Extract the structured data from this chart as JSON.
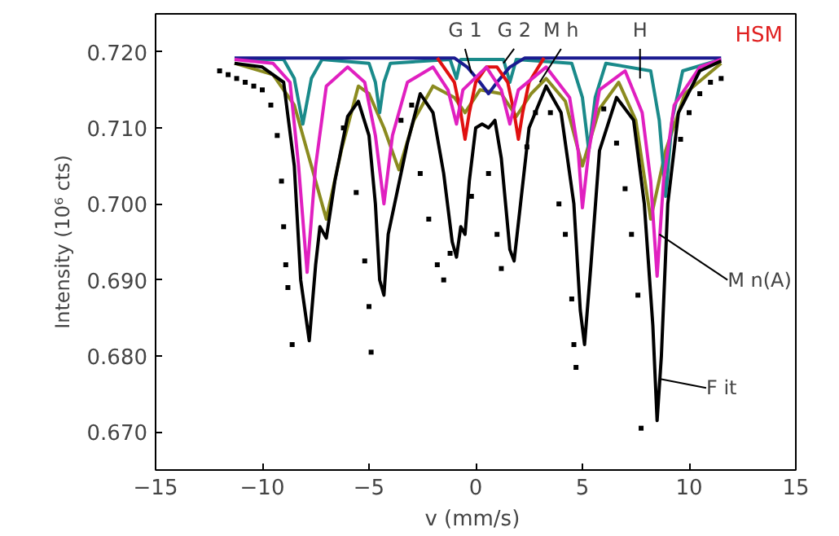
{
  "chart_data": {
    "type": "line",
    "xlabel": "v  (mm/s)",
    "ylabel": "Intensity (10⁶ cts)",
    "xlim": [
      -15,
      15
    ],
    "xticks": [
      -15,
      -10,
      -5,
      0,
      5,
      10,
      15
    ],
    "ylim": [
      0.665,
      0.725
    ],
    "yticks": [
      {
        "value": 0.67,
        "label": "0.670"
      },
      {
        "value": 0.68,
        "label": "0.680"
      },
      {
        "value": 0.69,
        "label": "0.690"
      },
      {
        "value": 0.7,
        "label": "0.700"
      },
      {
        "value": 0.71,
        "label": "0.710"
      },
      {
        "value": 0.72,
        "label": "0.720"
      }
    ],
    "series": [
      {
        "type": "scatter",
        "color": "#000000",
        "x": [
          -12,
          -11.6,
          -11.2,
          -10.8,
          -10.4,
          -10,
          -9.6,
          -9.3,
          -9.1,
          -9,
          -8.9,
          -8.8,
          -8.6,
          -6.2,
          -5.6,
          -5.2,
          -5,
          -4.9,
          -3.5,
          -3,
          -2.6,
          -2.2,
          -1.8,
          -1.5,
          -1.2,
          -0.2,
          0.6,
          1,
          1.2,
          2.4,
          2.8,
          3.5,
          3.9,
          4.2,
          4.5,
          4.6,
          4.7,
          6,
          6.6,
          7,
          7.3,
          7.6,
          7.75,
          9.6,
          10,
          10.5,
          11,
          11.5
        ],
        "values": [
          0.7175,
          0.717,
          0.7165,
          0.716,
          0.7155,
          0.715,
          0.713,
          0.709,
          0.703,
          0.697,
          0.692,
          0.689,
          0.6815,
          0.71,
          0.7015,
          0.6925,
          0.6865,
          0.6805,
          0.711,
          0.713,
          0.704,
          0.698,
          0.692,
          0.69,
          0.6935,
          0.701,
          0.704,
          0.696,
          0.6915,
          0.7075,
          0.712,
          0.712,
          0.7,
          0.696,
          0.6875,
          0.6815,
          0.6785,
          0.7125,
          0.708,
          0.702,
          0.696,
          0.688,
          0.6705,
          0.7085,
          0.712,
          0.7145,
          0.716,
          0.7165
        ]
      },
      {
        "color": "#8b8b20",
        "x": [
          -11.3,
          -9.5,
          -8.5,
          -7.8,
          -7.0,
          -6.3,
          -5.5,
          -5,
          -4.3,
          -3.6,
          -2.9,
          -2.0,
          -1.0,
          -0.5,
          0.2,
          1.2,
          1.9,
          2.6,
          3.3,
          4.2,
          5.0,
          5.8,
          6.7,
          7.5,
          8.2,
          8.9,
          9.8,
          11.5
        ],
        "values": [
          0.7185,
          0.717,
          0.713,
          0.706,
          0.698,
          0.707,
          0.7155,
          0.7145,
          0.71,
          0.7045,
          0.711,
          0.7155,
          0.714,
          0.712,
          0.715,
          0.7145,
          0.7115,
          0.7145,
          0.7165,
          0.7135,
          0.705,
          0.7125,
          0.716,
          0.711,
          0.698,
          0.707,
          0.7145,
          0.7185
        ]
      },
      {
        "color": "#1a8a8a",
        "x": [
          -11.3,
          -9,
          -8.5,
          -8.1,
          -7.7,
          -7.2,
          -5,
          -4.7,
          -4.5,
          -4.3,
          -4,
          -1.2,
          -0.9,
          -0.7,
          1.3,
          1.6,
          1.9,
          4.5,
          5.0,
          5.3,
          5.6,
          6.1,
          8.2,
          8.6,
          8.9,
          9.2,
          9.7,
          11.5
        ],
        "values": [
          0.719,
          0.719,
          0.7165,
          0.7105,
          0.7165,
          0.719,
          0.7185,
          0.716,
          0.712,
          0.716,
          0.7185,
          0.719,
          0.7165,
          0.719,
          0.719,
          0.716,
          0.719,
          0.7185,
          0.714,
          0.707,
          0.714,
          0.7185,
          0.7175,
          0.711,
          0.701,
          0.711,
          0.7175,
          0.719
        ]
      },
      {
        "color": "#1a1a90",
        "x": [
          -11.3,
          -1.0,
          -0.4,
          0.2,
          0.6,
          1.0,
          1.6,
          2.3,
          11.5
        ],
        "values": [
          0.7192,
          0.7192,
          0.718,
          0.716,
          0.7145,
          0.716,
          0.718,
          0.7192,
          0.7192
        ]
      },
      {
        "color": "#e01010",
        "x": [
          -1.8,
          -1.0,
          -0.7,
          -0.5,
          -0.3,
          0,
          0.5,
          1.0,
          1.5,
          1.8,
          2.0,
          2.2,
          2.5,
          3.2
        ],
        "values": [
          0.7192,
          0.716,
          0.712,
          0.7085,
          0.712,
          0.716,
          0.718,
          0.718,
          0.716,
          0.712,
          0.7085,
          0.712,
          0.716,
          0.7192
        ]
      },
      {
        "color": "#e020c0",
        "x": [
          -11.3,
          -9.5,
          -8.7,
          -8.3,
          -7.9,
          -7.5,
          -7.0,
          -6,
          -5.2,
          -4.7,
          -4.3,
          -3.9,
          -3.2,
          -2,
          -1.3,
          -0.9,
          -0.6,
          0.5,
          1.2,
          1.6,
          2.0,
          3.3,
          4.4,
          4.8,
          5.0,
          5.3,
          5.8,
          7,
          7.8,
          8.2,
          8.5,
          8.8,
          9.3,
          10.5,
          11.5
        ],
        "values": [
          0.719,
          0.7185,
          0.716,
          0.705,
          0.691,
          0.705,
          0.7155,
          0.718,
          0.716,
          0.709,
          0.7,
          0.709,
          0.716,
          0.718,
          0.715,
          0.7105,
          0.715,
          0.718,
          0.715,
          0.7105,
          0.715,
          0.718,
          0.714,
          0.707,
          0.6995,
          0.707,
          0.715,
          0.7175,
          0.712,
          0.703,
          0.6905,
          0.703,
          0.713,
          0.718,
          0.719
        ]
      },
      {
        "color": "#000000",
        "x": [
          -11.3,
          -10,
          -9,
          -8.5,
          -8.2,
          -7.8,
          -7.5,
          -7.3,
          -7.0,
          -6.6,
          -6,
          -5.5,
          -5,
          -4.7,
          -4.5,
          -4.3,
          -4.1,
          -3.8,
          -3.2,
          -2.6,
          -2,
          -1.5,
          -1.1,
          -0.9,
          -0.7,
          -0.5,
          -0.3,
          0,
          0.3,
          0.6,
          0.9,
          1.2,
          1.6,
          1.8,
          2.1,
          2.5,
          3.3,
          4.0,
          4.6,
          4.9,
          5.1,
          5.4,
          5.8,
          6.6,
          7.4,
          7.9,
          8.3,
          8.5,
          8.7,
          9.0,
          9.5,
          10.5,
          11.5
        ],
        "values": [
          0.7185,
          0.718,
          0.716,
          0.705,
          0.69,
          0.682,
          0.692,
          0.697,
          0.6955,
          0.703,
          0.7115,
          0.7135,
          0.709,
          0.7,
          0.69,
          0.688,
          0.696,
          0.7,
          0.708,
          0.7145,
          0.712,
          0.704,
          0.695,
          0.693,
          0.697,
          0.696,
          0.703,
          0.71,
          0.7105,
          0.71,
          0.711,
          0.706,
          0.694,
          0.6925,
          0.7,
          0.71,
          0.7155,
          0.712,
          0.7,
          0.686,
          0.6815,
          0.692,
          0.707,
          0.714,
          0.711,
          0.7,
          0.684,
          0.6715,
          0.68,
          0.7,
          0.712,
          0.7175,
          0.7188
        ]
      }
    ],
    "annotations": [
      {
        "text": "G 1",
        "x": -0.2,
        "y": 0.7172
      },
      {
        "text": "G 2",
        "x": 1.3,
        "y": 0.7185
      },
      {
        "text": "M h",
        "x": 3.0,
        "y": 0.716
      },
      {
        "text": "H",
        "x": 7.7,
        "y": 0.7165
      },
      {
        "text": "M n(A)",
        "x": 8.6,
        "y": 0.696
      },
      {
        "text": "F it",
        "x": 8.6,
        "y": 0.677
      },
      "HSM"
    ]
  }
}
